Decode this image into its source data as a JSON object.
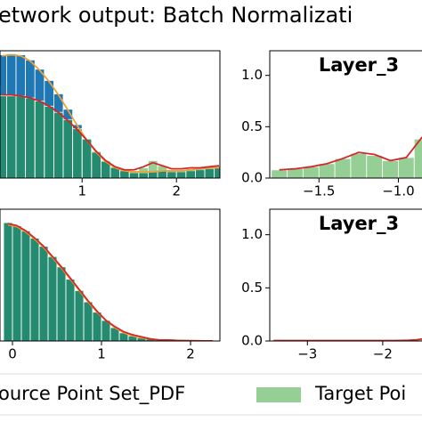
{
  "figure_title": "etwork output: Batch Normalizati",
  "legend": {
    "entries": [
      {
        "label": "ource Point Set_PDF"
      },
      {
        "label": "Target Poi",
        "color": "#2ca02c"
      }
    ]
  },
  "chart_data": [
    {
      "type": "histogram",
      "bins": [
        0.1,
        0.2,
        0.3,
        0.4,
        0.5,
        0.6,
        0.7,
        0.8,
        0.9,
        1.0,
        1.1,
        1.2,
        1.3,
        1.4,
        1.5,
        1.6,
        1.7,
        1.8,
        1.9,
        2.0,
        2.1,
        2.2,
        2.3,
        2.4,
        2.5
      ],
      "x": [
        0.15,
        0.25,
        0.35,
        0.45,
        0.55,
        0.65,
        0.75,
        0.85,
        0.95,
        1.05,
        1.15,
        1.25,
        1.35,
        1.45,
        1.55,
        1.65,
        1.75,
        1.85,
        1.95,
        2.05,
        2.15,
        2.25,
        2.35,
        2.45
      ],
      "series": [
        {
          "color": "#1f77b4",
          "values": [
            1.2,
            1.21,
            1.2,
            1.15,
            1.06,
            0.95,
            0.82,
            0.67,
            0.52,
            0.38,
            0.25,
            0.16,
            0.1,
            0.07,
            0.05,
            0.05,
            0.06,
            0.07,
            0.06,
            0.06,
            0.07,
            0.08,
            0.09,
            0.1
          ]
        },
        {
          "color": "#2ca02c",
          "values": [
            0.8,
            0.8,
            0.8,
            0.78,
            0.75,
            0.7,
            0.64,
            0.57,
            0.48,
            0.38,
            0.26,
            0.17,
            0.11,
            0.08,
            0.07,
            0.1,
            0.17,
            0.12,
            0.08,
            0.08,
            0.09,
            0.1,
            0.11,
            0.12
          ]
        }
      ],
      "lines": [
        {
          "color": "#e8a33d",
          "values": [
            1.19,
            1.2,
            1.19,
            1.14,
            1.05,
            0.94,
            0.81,
            0.66,
            0.51,
            0.37,
            0.25,
            0.16,
            0.1,
            0.07,
            0.06,
            0.06,
            0.06,
            0.07,
            0.07,
            0.07,
            0.08,
            0.09,
            0.1,
            0.1
          ]
        },
        {
          "color": "#d62728",
          "values": [
            0.81,
            0.81,
            0.8,
            0.78,
            0.75,
            0.7,
            0.64,
            0.56,
            0.47,
            0.37,
            0.26,
            0.17,
            0.11,
            0.08,
            0.08,
            0.11,
            0.15,
            0.12,
            0.09,
            0.09,
            0.1,
            0.1,
            0.11,
            0.12
          ]
        }
      ],
      "xlim": [
        0.13,
        2.46
      ],
      "ylim": [
        0,
        1.24
      ],
      "xticks": [
        1,
        2
      ],
      "yticks": []
    },
    {
      "type": "histogram",
      "title": "Layer_3",
      "bins": [
        -1.8,
        -1.7,
        -1.6,
        -1.5,
        -1.4,
        -1.3,
        -1.2,
        -1.1,
        -1.0,
        -0.9,
        -0.8
      ],
      "x": [
        -1.75,
        -1.65,
        -1.55,
        -1.45,
        -1.35,
        -1.25,
        -1.15,
        -1.05,
        -0.95,
        -0.85
      ],
      "series": [
        {
          "color": "#2ca02c",
          "values": [
            0.08,
            0.09,
            0.11,
            0.14,
            0.19,
            0.24,
            0.22,
            0.17,
            0.2,
            0.38
          ]
        }
      ],
      "lines": [
        {
          "color": "#d62728",
          "values": [
            0.08,
            0.09,
            0.11,
            0.14,
            0.19,
            0.25,
            0.23,
            0.17,
            0.2,
            0.4
          ]
        }
      ],
      "xlim": [
        -1.81,
        -0.795
      ],
      "ylim": [
        0,
        1.24
      ],
      "xticks": [
        {
          "value": -1.5,
          "label": "−1.5"
        },
        {
          "value": -1.0,
          "label": "−1.0"
        }
      ],
      "yticks": [
        {
          "value": 0,
          "label": "0.0"
        },
        {
          "value": 0.5,
          "label": "0.5"
        },
        {
          "value": 1.0,
          "label": "1.0"
        }
      ]
    },
    {
      "type": "histogram",
      "bins": [
        -0.1,
        0.0,
        0.1,
        0.2,
        0.3,
        0.4,
        0.5,
        0.6,
        0.7,
        0.8,
        0.9,
        1.0,
        1.1,
        1.2,
        1.3,
        1.4,
        1.5,
        1.6,
        1.7,
        1.8,
        1.9,
        2.0,
        2.1,
        2.2,
        2.3
      ],
      "x": [
        -0.05,
        0.05,
        0.15,
        0.25,
        0.35,
        0.45,
        0.55,
        0.65,
        0.75,
        0.85,
        0.95,
        1.05,
        1.15,
        1.25,
        1.35,
        1.45,
        1.55,
        1.65,
        1.75,
        1.85,
        1.95,
        2.05,
        2.15,
        2.25
      ],
      "series": [
        {
          "color": "#1f77b4",
          "values": [
            1.15,
            1.12,
            1.07,
            1.0,
            0.92,
            0.82,
            0.72,
            0.6,
            0.49,
            0.38,
            0.28,
            0.2,
            0.13,
            0.08,
            0.05,
            0.03,
            0.02,
            0.01,
            0.01,
            0,
            0,
            0,
            0,
            0
          ]
        },
        {
          "color": "#2ca02c",
          "values": [
            1.15,
            1.12,
            1.07,
            1.0,
            0.92,
            0.82,
            0.72,
            0.6,
            0.49,
            0.38,
            0.28,
            0.2,
            0.13,
            0.08,
            0.05,
            0.03,
            0.02,
            0.01,
            0.01,
            0,
            0,
            0,
            0,
            0
          ]
        }
      ],
      "lines": [
        {
          "color": "#e8a33d",
          "values": [
            1.13,
            1.11,
            1.06,
            0.99,
            0.91,
            0.81,
            0.71,
            0.6,
            0.49,
            0.38,
            0.28,
            0.2,
            0.13,
            0.08,
            0.05,
            0.03,
            0.02,
            0.01,
            0.01,
            0.005,
            0.003,
            0.002,
            0.001,
            0.001
          ]
        },
        {
          "color": "#d62728",
          "values": [
            1.14,
            1.12,
            1.07,
            1.0,
            0.92,
            0.82,
            0.72,
            0.61,
            0.5,
            0.39,
            0.29,
            0.2,
            0.14,
            0.09,
            0.06,
            0.04,
            0.02,
            0.01,
            0.01,
            0.005,
            0.003,
            0.002,
            0.001,
            0.001
          ]
        }
      ],
      "xlim": [
        -0.14,
        2.33
      ],
      "ylim": [
        0,
        1.28
      ],
      "xticks": [
        0,
        1,
        2
      ],
      "yticks": []
    },
    {
      "type": "histogram",
      "title": "Layer_3",
      "bins": [
        -3.5,
        -3.4,
        -3.3,
        -3.2,
        -3.1,
        -3.0,
        -2.9,
        -2.8,
        -2.7,
        -2.6,
        -2.5,
        -2.4,
        -2.3,
        -2.2,
        -2.1,
        -2.0,
        -1.9,
        -1.8,
        -1.7,
        -1.6,
        -1.5,
        -1.4
      ],
      "x": [
        -3.45,
        -3.35,
        -3.25,
        -3.15,
        -3.05,
        -2.95,
        -2.85,
        -2.75,
        -2.65,
        -2.55,
        -2.45,
        -2.35,
        -2.25,
        -2.15,
        -2.05,
        -1.95,
        -1.85,
        -1.75,
        -1.65,
        -1.55,
        -1.45
      ],
      "series": [
        {
          "color": "#2ca02c",
          "values": [
            0.004,
            0.004,
            0.004,
            0.004,
            0.004,
            0.004,
            0.004,
            0.004,
            0.004,
            0.004,
            0.004,
            0.004,
            0.004,
            0.004,
            0.004,
            0.004,
            0.004,
            0.005,
            0.006,
            0.01,
            0.02
          ]
        }
      ],
      "lines": [
        {
          "color": "#d62728",
          "values": [
            0.004,
            0.004,
            0.004,
            0.004,
            0.004,
            0.004,
            0.004,
            0.004,
            0.004,
            0.004,
            0.004,
            0.004,
            0.004,
            0.004,
            0.004,
            0.004,
            0.004,
            0.005,
            0.007,
            0.011,
            0.022
          ]
        }
      ],
      "xlim": [
        -3.5,
        -1.36
      ],
      "ylim": [
        0,
        1.24
      ],
      "xticks": [
        {
          "value": -3,
          "label": "−3"
        },
        {
          "value": -2,
          "label": "−2"
        }
      ],
      "yticks": [
        {
          "value": 0,
          "label": "0.0"
        },
        {
          "value": 0.5,
          "label": "0.5"
        },
        {
          "value": 1.0,
          "label": "1.0"
        }
      ]
    }
  ]
}
